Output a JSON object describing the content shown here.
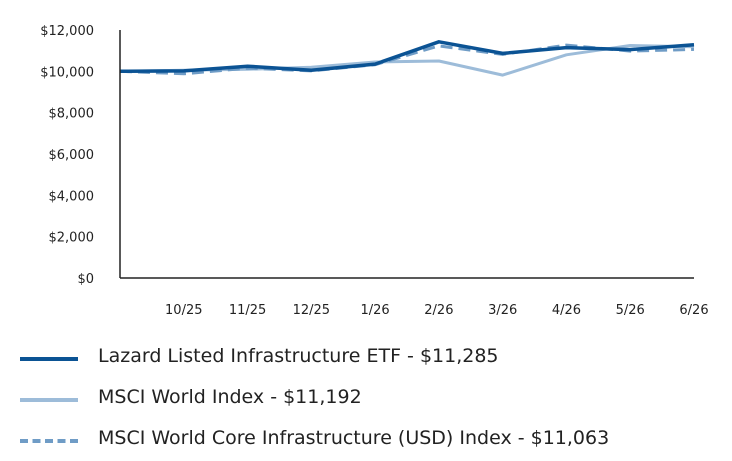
{
  "chart_data": {
    "type": "line",
    "categories": [
      "",
      "10/25",
      "11/25",
      "12/25",
      "1/26",
      "2/26",
      "3/26",
      "4/26",
      "5/26",
      "6/26"
    ],
    "yticks": [
      "$0",
      "$2,000",
      "$4,000",
      "$6,000",
      "$8,000",
      "$10,000",
      "$12,000"
    ],
    "ylim": [
      0,
      12000
    ],
    "grid": false,
    "legend_position": "bottom",
    "series": [
      {
        "name": "Lazard Listed Infrastructure ETF - $11,285",
        "color": "#0b5394",
        "style": "solid",
        "values": [
          10000,
          10020,
          10250,
          10050,
          10350,
          11430,
          10870,
          11150,
          11050,
          11285
        ]
      },
      {
        "name": "MSCI World Index - $11,192",
        "color": "#9dbcd9",
        "style": "solid",
        "values": [
          10000,
          10050,
          10100,
          10200,
          10450,
          10500,
          9820,
          10800,
          11250,
          11192
        ]
      },
      {
        "name": "MSCI World Core Infrastructure (USD) Index - $11,063",
        "color": "#6f9cc6",
        "style": "dashed",
        "values": [
          10000,
          9880,
          10150,
          10020,
          10320,
          11230,
          10820,
          11270,
          10980,
          11063
        ]
      }
    ]
  }
}
